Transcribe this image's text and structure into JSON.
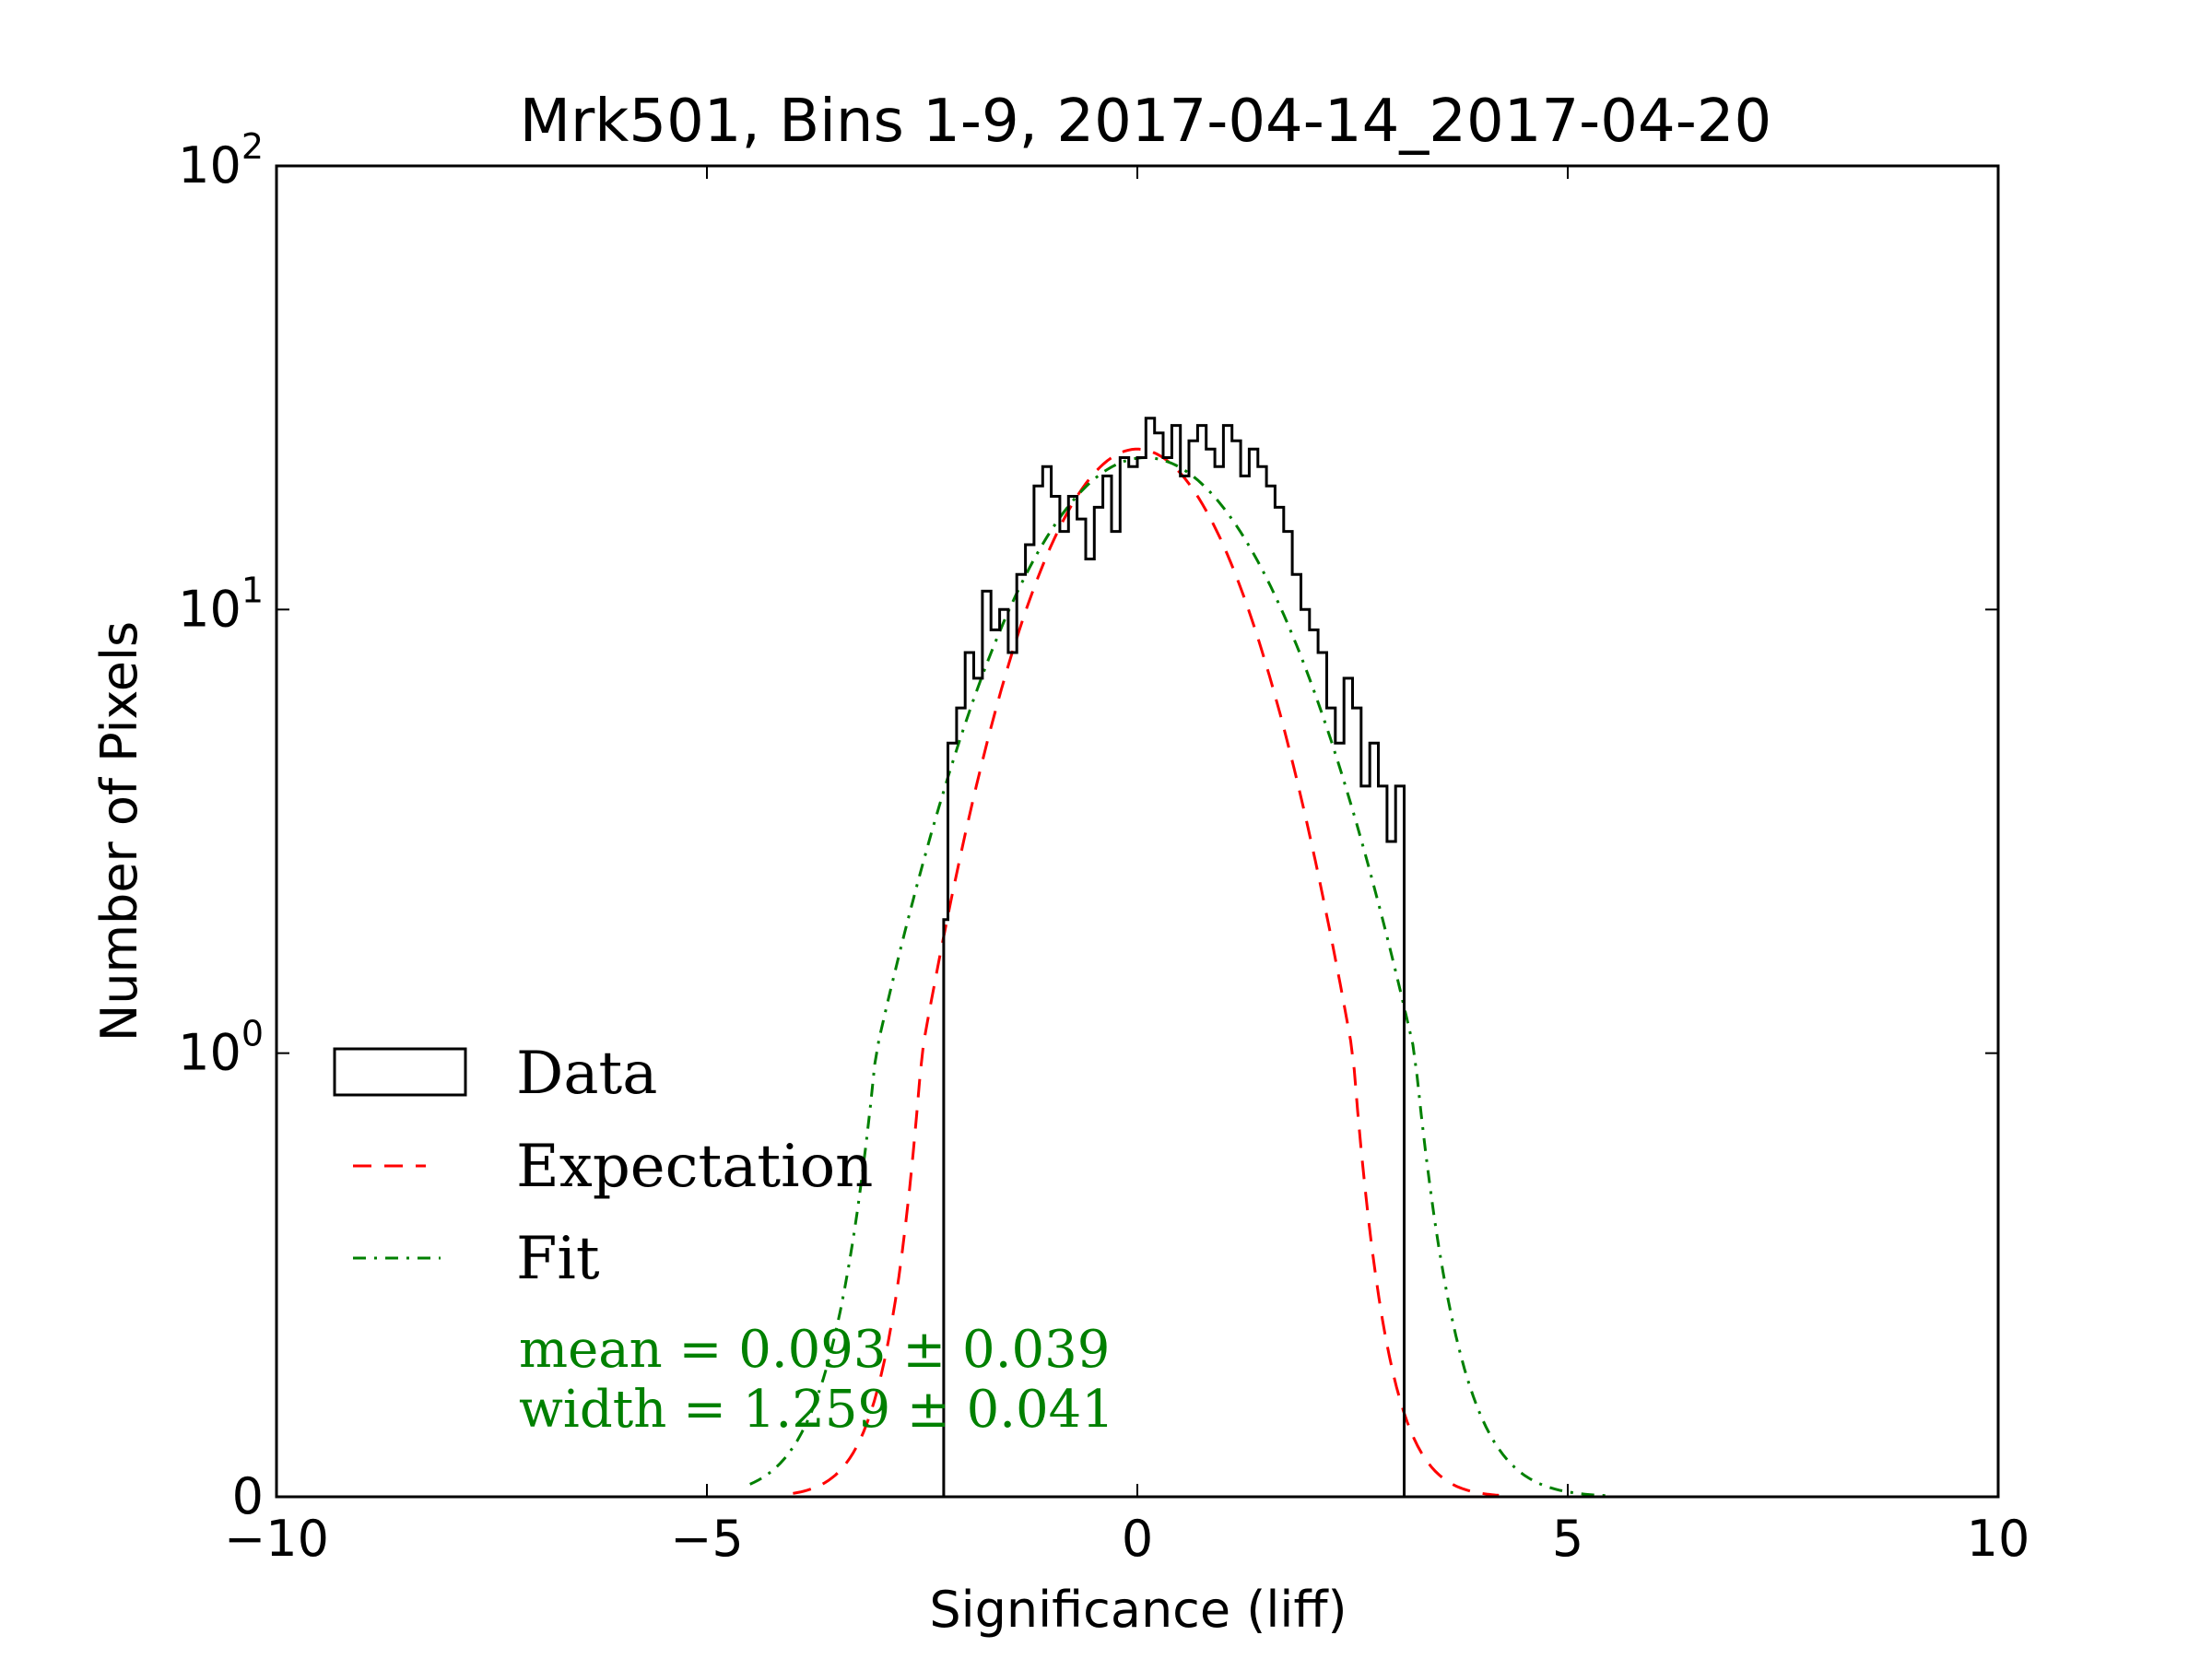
{
  "chart_data": {
    "type": "histogram",
    "title": "Mrk501, Bins 1-9, 2017-04-14_2017-04-20",
    "xlabel": "Significance (liff)",
    "ylabel": "Number of Pixels",
    "xlim": [
      -10,
      10
    ],
    "yscale": "symlog",
    "y_linthresh": 1,
    "ylim": [
      0,
      100
    ],
    "x_ticks": [
      -10,
      -5,
      0,
      5,
      10
    ],
    "x_tick_labels": [
      "−10",
      "−5",
      "0",
      "5",
      "10"
    ],
    "y_ticks": [
      {
        "value": 0,
        "base": "0",
        "exp": ""
      },
      {
        "value": 1,
        "base": "10",
        "exp": "0"
      },
      {
        "value": 10,
        "base": "10",
        "exp": "1"
      },
      {
        "value": 100,
        "base": "10",
        "exp": "2"
      }
    ],
    "grid": false,
    "legend_position": "lower-left",
    "series": [
      {
        "name": "Data",
        "style": "step",
        "color": "#000000",
        "bins": [
          [
            -2.25,
            -2.2,
            2
          ],
          [
            -2.2,
            -2.1,
            5
          ],
          [
            -2.1,
            -2.0,
            6
          ],
          [
            -2.0,
            -1.9,
            8
          ],
          [
            -1.9,
            -1.8,
            7
          ],
          [
            -1.8,
            -1.7,
            11
          ],
          [
            -1.7,
            -1.6,
            9
          ],
          [
            -1.6,
            -1.5,
            10
          ],
          [
            -1.5,
            -1.4,
            8
          ],
          [
            -1.4,
            -1.3,
            12
          ],
          [
            -1.3,
            -1.2,
            14
          ],
          [
            -1.2,
            -1.1,
            19
          ],
          [
            -1.1,
            -1.0,
            21
          ],
          [
            -1.0,
            -0.9,
            18
          ],
          [
            -0.9,
            -0.8,
            15
          ],
          [
            -0.8,
            -0.7,
            18
          ],
          [
            -0.7,
            -0.6,
            16
          ],
          [
            -0.6,
            -0.5,
            13
          ],
          [
            -0.5,
            -0.4,
            17
          ],
          [
            -0.4,
            -0.3,
            20
          ],
          [
            -0.3,
            -0.2,
            15
          ],
          [
            -0.2,
            -0.1,
            22
          ],
          [
            -0.1,
            0.0,
            21
          ],
          [
            0.0,
            0.1,
            22
          ],
          [
            0.1,
            0.2,
            27
          ],
          [
            0.2,
            0.3,
            25
          ],
          [
            0.3,
            0.4,
            22
          ],
          [
            0.4,
            0.5,
            26
          ],
          [
            0.5,
            0.6,
            20
          ],
          [
            0.6,
            0.7,
            24
          ],
          [
            0.7,
            0.8,
            26
          ],
          [
            0.8,
            0.9,
            23
          ],
          [
            0.9,
            1.0,
            21
          ],
          [
            1.0,
            1.1,
            26
          ],
          [
            1.1,
            1.2,
            24
          ],
          [
            1.2,
            1.3,
            20
          ],
          [
            1.3,
            1.4,
            23
          ],
          [
            1.4,
            1.5,
            21
          ],
          [
            1.5,
            1.6,
            19
          ],
          [
            1.6,
            1.7,
            17
          ],
          [
            1.7,
            1.8,
            15
          ],
          [
            1.8,
            1.9,
            12
          ],
          [
            1.9,
            2.0,
            10
          ],
          [
            2.0,
            2.1,
            9
          ],
          [
            2.1,
            2.2,
            8
          ],
          [
            2.2,
            2.3,
            6
          ],
          [
            2.3,
            2.4,
            5
          ],
          [
            2.4,
            2.5,
            7
          ],
          [
            2.5,
            2.6,
            6
          ],
          [
            2.6,
            2.7,
            4
          ],
          [
            2.7,
            2.8,
            5
          ],
          [
            2.8,
            2.9,
            4
          ],
          [
            2.9,
            3.0,
            3
          ],
          [
            3.0,
            3.1,
            4
          ]
        ]
      },
      {
        "name": "Expectation",
        "style": "dashed",
        "color": "#ff0000",
        "model": "gaussian",
        "amplitude": 23,
        "mean": 0.0,
        "sigma": 1.0,
        "x_range": [
          -4.0,
          4.2
        ]
      },
      {
        "name": "Fit",
        "style": "dash-dot",
        "color": "#008000",
        "model": "gaussian",
        "amplitude": 22,
        "mean": 0.093,
        "sigma": 1.259,
        "x_range": [
          -4.5,
          5.5
        ]
      }
    ],
    "fit_annotation": {
      "line1": "mean = 0.093 ± 0.039",
      "line2": "width = 1.259 ± 0.041",
      "color": "#008000"
    }
  }
}
